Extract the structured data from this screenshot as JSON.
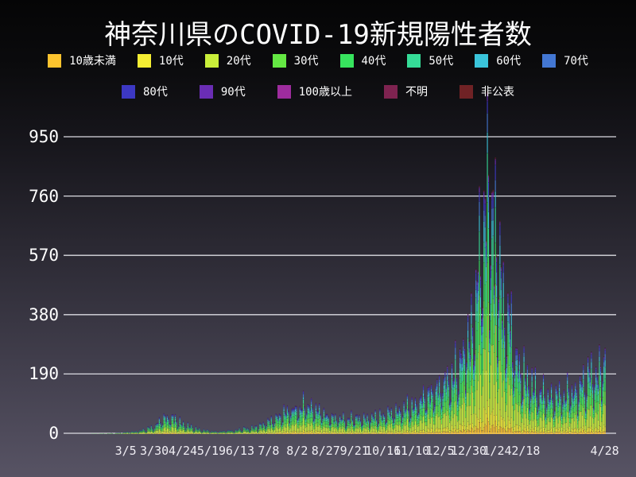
{
  "title": "神奈川県のCOVID-19新規陽性者数",
  "chart_data": {
    "type": "stacked-bar",
    "title": "神奈川県のCOVID-19新規陽性者数",
    "xlabel": "",
    "ylabel": "",
    "grid": true,
    "legend_position": "top",
    "y_ticks": [
      0,
      190,
      380,
      570,
      760,
      950
    ],
    "y_max": 1010,
    "gridline_color": "#dcdce2",
    "x_ticks": [
      {
        "label": "3/5",
        "day": 46
      },
      {
        "label": "3/30",
        "day": 71
      },
      {
        "label": "4/24",
        "day": 96
      },
      {
        "label": "5/19",
        "day": 121
      },
      {
        "label": "6/13",
        "day": 146
      },
      {
        "label": "7/8",
        "day": 171
      },
      {
        "label": "8/2",
        "day": 196
      },
      {
        "label": "8/27",
        "day": 221
      },
      {
        "label": "9/21",
        "day": 246
      },
      {
        "label": "10/16",
        "day": 271
      },
      {
        "label": "11/10",
        "day": 296
      },
      {
        "label": "12/5",
        "day": 321
      },
      {
        "label": "12/30",
        "day": 346
      },
      {
        "label": "1/24",
        "day": 371
      },
      {
        "label": "2/18",
        "day": 396
      },
      {
        "label": "4/28",
        "day": 465
      }
    ],
    "axis_days_total": 475,
    "data_start_day": 16,
    "data_end_day": 465,
    "age_groups": [
      {
        "label": "10歳未満",
        "color": "#fcc32e",
        "fraction": 0.04
      },
      {
        "label": "10代",
        "color": "#f5ee33",
        "fraction": 0.07
      },
      {
        "label": "20代",
        "color": "#c9ef3a",
        "fraction": 0.24
      },
      {
        "label": "30代",
        "color": "#64e843",
        "fraction": 0.17
      },
      {
        "label": "40代",
        "color": "#37e45e",
        "fraction": 0.15
      },
      {
        "label": "50代",
        "color": "#35dc97",
        "fraction": 0.12
      },
      {
        "label": "60代",
        "color": "#3ac4da",
        "fraction": 0.07
      },
      {
        "label": "70代",
        "color": "#4377d3",
        "fraction": 0.06
      },
      {
        "label": "80代",
        "color": "#3c38c3",
        "fraction": 0.05
      },
      {
        "label": "90代",
        "color": "#6a2db4",
        "fraction": 0.02
      },
      {
        "label": "100歳以上",
        "color": "#9e2c9e",
        "fraction": 0.004
      },
      {
        "label": "不明",
        "color": "#7e2350",
        "fraction": 0.002
      },
      {
        "label": "非公表",
        "color": "#702225",
        "fraction": 0.004
      }
    ],
    "weekday_pattern": [
      0.55,
      0.75,
      1.3,
      1.1,
      0.95,
      1.35,
      1.0
    ],
    "weekly_envelope": [
      [
        16,
        1
      ],
      [
        30,
        2
      ],
      [
        42,
        4
      ],
      [
        49,
        7
      ],
      [
        56,
        9
      ],
      [
        63,
        14
      ],
      [
        70,
        24
      ],
      [
        77,
        42
      ],
      [
        84,
        55
      ],
      [
        91,
        42
      ],
      [
        98,
        30
      ],
      [
        105,
        20
      ],
      [
        112,
        13
      ],
      [
        119,
        10
      ],
      [
        126,
        8
      ],
      [
        133,
        10
      ],
      [
        140,
        12
      ],
      [
        147,
        15
      ],
      [
        154,
        20
      ],
      [
        161,
        25
      ],
      [
        168,
        32
      ],
      [
        175,
        45
      ],
      [
        182,
        60
      ],
      [
        189,
        70
      ],
      [
        196,
        80
      ],
      [
        203,
        92
      ],
      [
        210,
        78
      ],
      [
        217,
        65
      ],
      [
        224,
        55
      ],
      [
        231,
        50
      ],
      [
        238,
        46
      ],
      [
        245,
        52
      ],
      [
        252,
        46
      ],
      [
        259,
        50
      ],
      [
        266,
        56
      ],
      [
        273,
        62
      ],
      [
        280,
        66
      ],
      [
        287,
        72
      ],
      [
        294,
        85
      ],
      [
        301,
        100
      ],
      [
        308,
        120
      ],
      [
        315,
        132
      ],
      [
        322,
        150
      ],
      [
        329,
        170
      ],
      [
        336,
        200
      ],
      [
        343,
        250
      ],
      [
        350,
        380
      ],
      [
        357,
        620
      ],
      [
        364,
        730
      ],
      [
        371,
        520
      ],
      [
        378,
        360
      ],
      [
        385,
        270
      ],
      [
        392,
        200
      ],
      [
        399,
        155
      ],
      [
        406,
        130
      ],
      [
        413,
        118
      ],
      [
        420,
        110
      ],
      [
        427,
        118
      ],
      [
        434,
        128
      ],
      [
        441,
        140
      ],
      [
        448,
        158
      ],
      [
        455,
        180
      ],
      [
        462,
        215
      ],
      [
        465,
        230
      ]
    ]
  }
}
